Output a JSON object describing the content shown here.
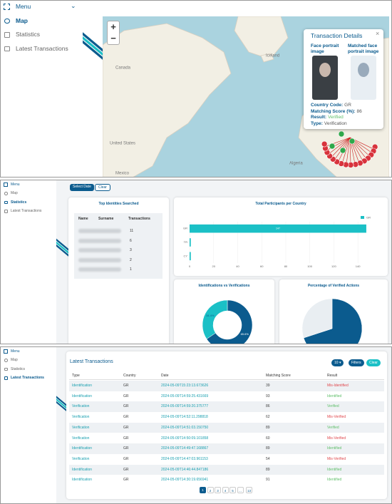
{
  "menu": {
    "title": "Menu",
    "items": [
      "Map",
      "Statistics",
      "Latest Transactions"
    ]
  },
  "panel_map": {
    "zoom": [
      "+",
      "−"
    ],
    "map_labels": [
      "Canada",
      "Iceland",
      "United States",
      "Mexico",
      "Algeria"
    ],
    "popup": {
      "title": "Transaction Details",
      "close": "×",
      "image_labels": [
        "Face portrait image",
        "Matched face portrait image"
      ],
      "fields": [
        {
          "label": "Country Code:",
          "value": "GR"
        },
        {
          "label": "Matching Score (%):",
          "value": "86"
        },
        {
          "label": "Result:",
          "value": "Verified"
        },
        {
          "label": "Type:",
          "value": "Verification"
        }
      ]
    }
  },
  "panel_statistics": {
    "buttons": [
      "Select Date",
      "Clear"
    ],
    "top_identities": {
      "title": "Top Identities Searched",
      "columns": [
        "Name",
        "Surname",
        "Transactions"
      ],
      "transactions": [
        11,
        6,
        3,
        2,
        1
      ]
    },
    "participants_chart": {
      "type": "bar",
      "title": "Total Participants per Country",
      "legend": "GR",
      "categories": [
        "GR",
        "TR",
        "CY"
      ],
      "values": [
        147,
        1,
        1
      ],
      "color": "#1bc0c6",
      "xlim": [
        0,
        150
      ],
      "xticks": [
        0,
        20,
        40,
        60,
        80,
        100,
        120,
        140
      ],
      "grid": true
    },
    "identifications_chart": {
      "type": "donut",
      "title": "Identifications vs Verifications",
      "values": [
        65.6,
        34.4
      ],
      "value_labels": [
        "65.6%",
        "34.4%"
      ],
      "colors": [
        "#0b5b8e",
        "#1bc0c6"
      ]
    },
    "verified_chart": {
      "type": "pie",
      "title": "Percentage of Verified Actions",
      "values": [
        70,
        30
      ],
      "colors": [
        "#0b5b8e",
        "#e9eef2"
      ]
    }
  },
  "panel_transactions": {
    "title": "Latest Transactions",
    "controls": [
      "10 ▾",
      "Filters",
      "Clear"
    ],
    "columns": [
      "Type",
      "Country",
      "Date",
      "Matching Score",
      "Result"
    ],
    "rows": [
      [
        "Identification",
        "GR",
        "2024-05-09T15:23:13.673626",
        39,
        "Mis-Identified"
      ],
      [
        "Identification",
        "GR",
        "2024-05-09T14:59:25.431669",
        93,
        "Identified"
      ],
      [
        "Verification",
        "GR",
        "2024-05-09T14:59:20.375777",
        86,
        "Verified"
      ],
      [
        "Verification",
        "GR",
        "2024-05-09T14:52:11.298818",
        62,
        "Mis-Verified"
      ],
      [
        "Verification",
        "GR",
        "2024-05-09T14:51:03.150750",
        89,
        "Verified"
      ],
      [
        "Verification",
        "GR",
        "2024-05-09T14:50:09.101858",
        60,
        "Mis-Verified"
      ],
      [
        "Identification",
        "GR",
        "2024-05-09T14:49:47.168867",
        89,
        "Identified"
      ],
      [
        "Verification",
        "GR",
        "2024-05-09T14:47:03.961153",
        54,
        "Mis-Verified"
      ],
      [
        "Identification",
        "GR",
        "2024-05-09T14:46:44.847186",
        89,
        "Identified"
      ],
      [
        "Identification",
        "GR",
        "2024-05-09T14:30:19.656941",
        91,
        "Identified"
      ]
    ],
    "pages": [
      "1",
      "2",
      "3",
      "4",
      "5",
      "...",
      "13"
    ]
  },
  "status_colors": {
    "Mis-Identified": "#e0474c",
    "Mis-Verified": "#e0474c",
    "Identified": "#5fbf6a",
    "Verified": "#5fbf6a"
  }
}
